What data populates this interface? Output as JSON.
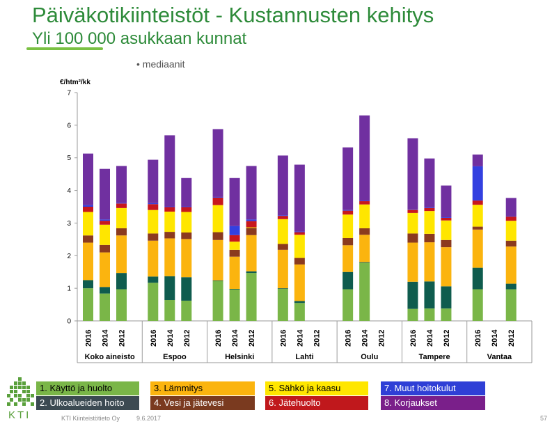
{
  "header": {
    "title": "Päiväkotikiinteistöt - Kustannusten kehitys",
    "subtitle": "Yli 100 000 asukkaan kunnat",
    "note": "• mediaanit"
  },
  "chart_data": {
    "type": "bar",
    "stacked": true,
    "ylabel": "€/htm²/kk",
    "ylim": [
      0,
      7
    ],
    "yticks": [
      0,
      1,
      2,
      3,
      4,
      5,
      6,
      7
    ],
    "grid": false,
    "groups": [
      "Koko aineisto",
      "Espoo",
      "Helsinki",
      "Lahti",
      "Oulu",
      "Tampere",
      "Vantaa"
    ],
    "years": [
      "2016",
      "2014",
      "2012"
    ],
    "series": [
      {
        "name": "1. Käyttö ja huolto",
        "color": "#7ab648"
      },
      {
        "name": "2. Ulkoalueiden hoito",
        "color": "#0f5c4e"
      },
      {
        "name": "3. Lämmitys",
        "color": "#fbb40f"
      },
      {
        "name": "4. Vesi ja jätevesi",
        "color": "#8b3a1e"
      },
      {
        "name": "5. Sähkö ja kaasu",
        "color": "#ffe600"
      },
      {
        "name": "6. Jätehuolto",
        "color": "#c8171d"
      },
      {
        "name": "7. Muut hoitokulut",
        "color": "#3340e0"
      },
      {
        "name": "8. Korjaukset",
        "color": "#7030a0"
      }
    ],
    "bars": [
      {
        "group": "Koko aineisto",
        "year": "2016",
        "values": [
          1.0,
          0.25,
          1.15,
          0.22,
          0.72,
          0.16,
          0.05,
          1.58
        ]
      },
      {
        "group": "Koko aineisto",
        "year": "2014",
        "values": [
          0.84,
          0.2,
          1.06,
          0.23,
          0.62,
          0.12,
          0.04,
          1.55
        ]
      },
      {
        "group": "Koko aineisto",
        "year": "2012",
        "values": [
          0.97,
          0.5,
          1.15,
          0.22,
          0.62,
          0.14,
          0.02,
          1.13
        ]
      },
      {
        "group": "Espoo",
        "year": "2016",
        "values": [
          1.17,
          0.19,
          1.1,
          0.22,
          0.72,
          0.18,
          0.03,
          1.33
        ]
      },
      {
        "group": "Espoo",
        "year": "2014",
        "values": [
          0.64,
          0.73,
          1.16,
          0.2,
          0.62,
          0.14,
          0.02,
          2.18
        ]
      },
      {
        "group": "Espoo",
        "year": "2012",
        "values": [
          0.62,
          0.72,
          1.17,
          0.2,
          0.63,
          0.15,
          0.02,
          0.87
        ]
      },
      {
        "group": "Helsinki",
        "year": "2016",
        "values": [
          1.22,
          0.02,
          1.24,
          0.24,
          0.83,
          0.23,
          0.02,
          2.08
        ]
      },
      {
        "group": "Helsinki",
        "year": "2014",
        "values": [
          0.96,
          0.02,
          0.99,
          0.21,
          0.25,
          0.2,
          0.28,
          1.47
        ]
      },
      {
        "group": "Helsinki",
        "year": "2012",
        "values": [
          1.47,
          0.05,
          1.11,
          0.22,
          0.02,
          0.19,
          0.05,
          1.64
        ]
      },
      {
        "group": "Lahti",
        "year": "2016",
        "values": [
          0.98,
          0.02,
          1.18,
          0.18,
          0.76,
          0.1,
          0.02,
          1.83
        ]
      },
      {
        "group": "Lahti",
        "year": "2014",
        "values": [
          0.55,
          0.06,
          1.12,
          0.2,
          0.71,
          0.08,
          0.02,
          2.05
        ]
      },
      {
        "group": "Oulu",
        "year": "2016",
        "values": [
          0.97,
          0.53,
          0.82,
          0.22,
          0.72,
          0.12,
          0.02,
          1.92
        ]
      },
      {
        "group": "Oulu",
        "year": "2014",
        "values": [
          1.78,
          0.02,
          0.84,
          0.2,
          0.73,
          0.1,
          0.02,
          2.61
        ]
      },
      {
        "group": "Tampere",
        "year": "2016",
        "values": [
          0.37,
          0.83,
          1.2,
          0.28,
          0.63,
          0.1,
          0.02,
          2.17
        ]
      },
      {
        "group": "Tampere",
        "year": "2014",
        "values": [
          0.38,
          0.83,
          1.2,
          0.26,
          0.7,
          0.09,
          0.02,
          1.5
        ]
      },
      {
        "group": "Tampere",
        "year": "2012",
        "values": [
          0.38,
          0.68,
          1.2,
          0.22,
          0.6,
          0.08,
          0.02,
          0.97
        ]
      },
      {
        "group": "Vantaa",
        "year": "2016",
        "values": [
          0.97,
          0.66,
          1.17,
          0.09,
          0.67,
          0.13,
          1.05,
          0.36
        ]
      },
      {
        "group": "Vantaa",
        "year": "2012",
        "values": [
          0.97,
          0.17,
          1.14,
          0.18,
          0.61,
          0.13,
          0.02,
          0.55
        ]
      }
    ]
  },
  "legend": {
    "items": [
      {
        "label": "1. Käyttö ja huolto",
        "bg": "#7ab648",
        "fg": "#000000"
      },
      {
        "label": "3. Lämmitys",
        "bg": "#fbb40f",
        "fg": "#000000"
      },
      {
        "label": "5. Sähkö ja kaasu",
        "bg": "#ffe600",
        "fg": "#000000"
      },
      {
        "label": "7. Muut hoitokulut",
        "bg": "#2f3fd6",
        "fg": "#ffffff"
      },
      {
        "label": "2. Ulkoalueiden hoito",
        "bg": "#3c4a52",
        "fg": "#ffffff"
      },
      {
        "label": "4. Vesi ja jätevesi",
        "bg": "#7a3a1f",
        "fg": "#ffffff"
      },
      {
        "label": "6. Jätehuolto",
        "bg": "#c0181c",
        "fg": "#ffffff"
      },
      {
        "label": "8. Korjaukset",
        "bg": "#7a1f8a",
        "fg": "#ffffff"
      }
    ]
  },
  "footer": {
    "logo_text": "KTI",
    "company": "KTI Kiinteistötieto Oy",
    "date": "9.6.2017",
    "page_number": "57"
  }
}
